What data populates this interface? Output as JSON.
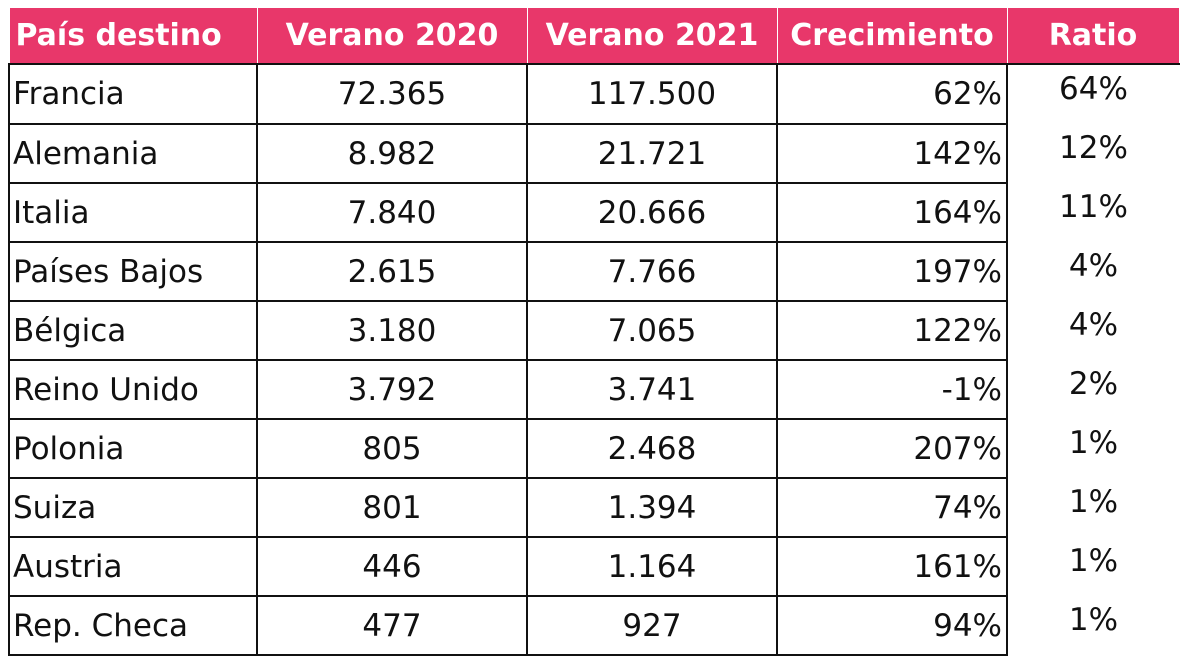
{
  "table": {
    "headers": [
      "País destino",
      "Verano 2020",
      "Verano 2021",
      "Crecimiento",
      "Ratio"
    ],
    "rows": [
      [
        "Francia",
        "72.365",
        "117.500",
        "62%",
        "64%"
      ],
      [
        "Alemania",
        "8.982",
        "21.721",
        "142%",
        "12%"
      ],
      [
        "Italia",
        "7.840",
        "20.666",
        "164%",
        "11%"
      ],
      [
        "Países Bajos",
        "2.615",
        "7.766",
        "197%",
        "4%"
      ],
      [
        "Bélgica",
        "3.180",
        "7.065",
        "122%",
        "4%"
      ],
      [
        "Reino Unido",
        "3.792",
        "3.741",
        "-1%",
        "2%"
      ],
      [
        "Polonia",
        "805",
        "2.468",
        "207%",
        "1%"
      ],
      [
        "Suiza",
        "801",
        "1.394",
        "74%",
        "1%"
      ],
      [
        "Austria",
        "446",
        "1.164",
        "161%",
        "1%"
      ],
      [
        "Rep. Checa",
        "477",
        "927",
        "94%",
        "1%"
      ]
    ]
  },
  "colors": {
    "header_bg": "#e8376a",
    "header_text": "#ffffff",
    "border": "#111111"
  }
}
